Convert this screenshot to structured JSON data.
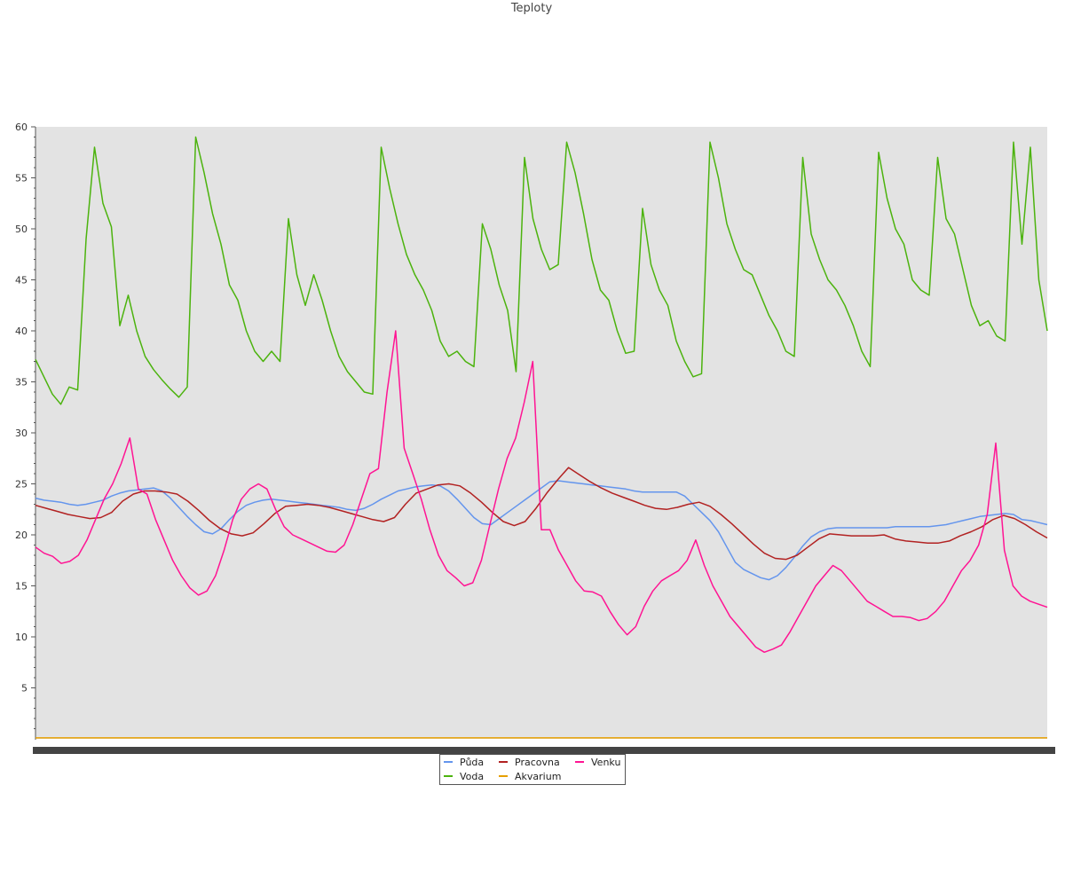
{
  "chart_data": {
    "type": "line",
    "title": "Teploty",
    "xlabel": "",
    "ylabel": "",
    "ylim": [
      0,
      60
    ],
    "yticks": [
      5,
      10,
      15,
      20,
      25,
      30,
      35,
      40,
      45,
      50,
      55,
      60
    ],
    "grid": false,
    "legend_position": "bottom-center",
    "background": "#e3e3e3",
    "x_points": 121,
    "series": [
      {
        "name": "Půda",
        "color": "#6495ed",
        "values": [
          23.6,
          23.4,
          23.3,
          23.2,
          23.0,
          22.9,
          23.0,
          23.2,
          23.4,
          23.8,
          24.1,
          24.3,
          24.4,
          24.5,
          24.6,
          24.3,
          23.6,
          22.7,
          21.8,
          21.0,
          20.3,
          20.1,
          20.6,
          21.5,
          22.3,
          22.9,
          23.2,
          23.4,
          23.5,
          23.4,
          23.3,
          23.2,
          23.1,
          23.0,
          22.9,
          22.8,
          22.7,
          22.5,
          22.4,
          22.6,
          23.0,
          23.5,
          23.9,
          24.3,
          24.5,
          24.7,
          24.8,
          24.9,
          24.8,
          24.3,
          23.5,
          22.6,
          21.7,
          21.1,
          21.0,
          21.6,
          22.2,
          22.8,
          23.4,
          24.0,
          24.6,
          25.2,
          25.3,
          25.2,
          25.1,
          25.0,
          24.9,
          24.8,
          24.7,
          24.6,
          24.5,
          24.3,
          24.2,
          24.2,
          24.2,
          24.2,
          24.2,
          23.8,
          23.0,
          22.2,
          21.4,
          20.3,
          18.8,
          17.3,
          16.6,
          16.2,
          15.8,
          15.6,
          16.0,
          16.8,
          17.8,
          18.9,
          19.8,
          20.3,
          20.6,
          20.7,
          20.7,
          20.7,
          20.7,
          20.7,
          20.7,
          20.7,
          20.8,
          20.8,
          20.8,
          20.8,
          20.8,
          20.9,
          21.0,
          21.2,
          21.4,
          21.6,
          21.8,
          21.9,
          22.0,
          22.1,
          22.0,
          21.5,
          21.4,
          21.2,
          21.0
        ]
      },
      {
        "name": "Voda",
        "color": "#4cb30e",
        "values": [
          37.2,
          35.5,
          33.8,
          32.8,
          34.5,
          34.2,
          49.0,
          58.0,
          52.5,
          50.2,
          40.5,
          43.5,
          40.0,
          37.5,
          36.2,
          35.2,
          34.3,
          33.5,
          34.5,
          59.0,
          55.5,
          51.5,
          48.5,
          44.5,
          43.0,
          40.0,
          38.0,
          37.0,
          38.0,
          37.0,
          51.0,
          45.5,
          42.5,
          45.5,
          43.0,
          40.0,
          37.5,
          36.0,
          35.0,
          34.0,
          33.8,
          58.0,
          54.0,
          50.5,
          47.5,
          45.5,
          44.0,
          42.0,
          39.0,
          37.5,
          38.0,
          37.0,
          36.5,
          50.5,
          48.0,
          44.5,
          42.0,
          36.0,
          57.0,
          51.0,
          48.0,
          46.0,
          46.5,
          58.5,
          55.5,
          51.5,
          47.0,
          44.0,
          43.0,
          40.0,
          37.8,
          38.0,
          52.0,
          46.5,
          44.0,
          42.5,
          39.0,
          37.0,
          35.5,
          35.8,
          58.5,
          55.0,
          50.5,
          48.0,
          46.0,
          45.5,
          43.5,
          41.5,
          40.0,
          38.0,
          37.5,
          57.0,
          49.5,
          47.0,
          45.0,
          44.0,
          42.5,
          40.5,
          38.0,
          36.5,
          57.5,
          53.0,
          50.0,
          48.5,
          45.0,
          44.0,
          43.5,
          57.0,
          51.0,
          49.5,
          46.0,
          42.5,
          40.5,
          41.0,
          39.5,
          39.0,
          58.5,
          48.5,
          58.0,
          45.0,
          40.0
        ]
      },
      {
        "name": "Pracovna",
        "color": "#b22222",
        "values": [
          22.9,
          22.6,
          22.3,
          22.0,
          21.8,
          21.6,
          21.7,
          22.2,
          23.3,
          24.0,
          24.3,
          24.3,
          24.2,
          24.0,
          23.3,
          22.4,
          21.4,
          20.6,
          20.1,
          19.9,
          20.2,
          21.1,
          22.1,
          22.8,
          22.9,
          23.0,
          22.9,
          22.7,
          22.4,
          22.1,
          21.8,
          21.5,
          21.3,
          21.7,
          23.0,
          24.1,
          24.5,
          24.9,
          25.0,
          24.8,
          24.1,
          23.2,
          22.2,
          21.3,
          20.9,
          21.3,
          22.6,
          24.1,
          25.4,
          26.6,
          25.9,
          25.2,
          24.6,
          24.1,
          23.7,
          23.3,
          22.9,
          22.6,
          22.5,
          22.7,
          23.0,
          23.2,
          22.8,
          22.0,
          21.1,
          20.1,
          19.1,
          18.2,
          17.7,
          17.6,
          18.0,
          18.8,
          19.6,
          20.1,
          20.0,
          19.9,
          19.9,
          19.9,
          20.0,
          19.6,
          19.4,
          19.3,
          19.2,
          19.2,
          19.4,
          19.9,
          20.3,
          20.8,
          21.5,
          21.9,
          21.6,
          21.0,
          20.3,
          19.7
        ]
      },
      {
        "name": "Akvarium",
        "color": "#e69f00",
        "values": [
          0.1,
          0.1
        ]
      },
      {
        "name": "Venku",
        "color": "#ff1493",
        "values": [
          18.8,
          18.2,
          17.9,
          17.2,
          17.4,
          18.0,
          19.5,
          21.5,
          23.5,
          25.0,
          27.0,
          29.5,
          24.5,
          24.0,
          21.5,
          19.5,
          17.5,
          16.0,
          14.8,
          14.1,
          14.5,
          16.0,
          18.5,
          21.5,
          23.5,
          24.5,
          25.0,
          24.5,
          22.5,
          20.8,
          20.0,
          19.6,
          19.2,
          18.8,
          18.4,
          18.3,
          19.0,
          21.0,
          23.5,
          26.0,
          26.5,
          34.0,
          40.0,
          28.5,
          26.0,
          23.5,
          20.5,
          18.0,
          16.5,
          15.8,
          15.0,
          15.3,
          17.5,
          21.0,
          24.5,
          27.5,
          29.5,
          33.0,
          37.0,
          20.5,
          20.5,
          18.5,
          17.0,
          15.5,
          14.5,
          14.4,
          14.0,
          12.5,
          11.2,
          10.2,
          11.0,
          13.0,
          14.5,
          15.5,
          16.0,
          16.5,
          17.5,
          19.5,
          17.0,
          15.0,
          13.5,
          12.0,
          11.0,
          10.0,
          9.0,
          8.5,
          8.8,
          9.2,
          10.5,
          12.0,
          13.5,
          15.0,
          16.0,
          17.0,
          16.5,
          15.5,
          14.5,
          13.5,
          13.0,
          12.5,
          12.0,
          12.0,
          11.9,
          11.6,
          11.8,
          12.5,
          13.5,
          15.0,
          16.5,
          17.5,
          19.0,
          22.0,
          29.0,
          18.5,
          15.0,
          14.0,
          13.5,
          13.2,
          12.9
        ]
      }
    ]
  }
}
